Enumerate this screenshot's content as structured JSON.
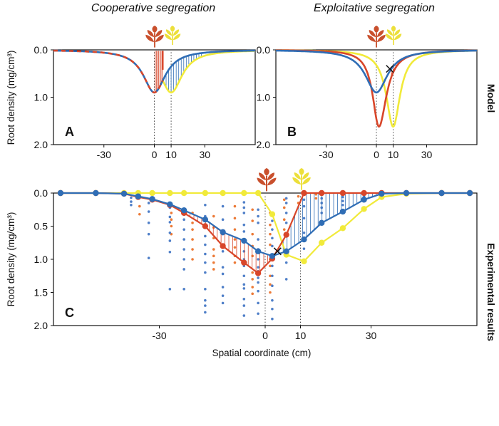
{
  "titles": {
    "cooperative": "Cooperative segregation",
    "exploitative": "Exploitative segregation"
  },
  "side_labels": {
    "model": "Model",
    "experimental": "Experimental results"
  },
  "colors": {
    "red": "#d8462a",
    "blue": "#2f6db5",
    "yellow": "#f1ea3a",
    "orange": "#ec7a37",
    "axis": "#111111",
    "leaf_red": "#c9502d",
    "leaf_yellow": "#ecdf3a"
  },
  "chart_data": [
    {
      "panel": "A",
      "type": "line",
      "title": "Cooperative segregation",
      "ylabel": "Root density (mg/cm³)",
      "xlabel": "",
      "xlim": [
        -60,
        60
      ],
      "ylim": [
        0,
        2
      ],
      "y_inverted": true,
      "xticks": [
        -30,
        0,
        10,
        30
      ],
      "yticks": [
        "0.0",
        "1.0",
        "2.0"
      ],
      "vlines": [
        0,
        10
      ],
      "series": [
        {
          "name": "red plant (model)",
          "color": "red",
          "dashed_with": "blue",
          "peak": 0.9,
          "center": 0,
          "width_left": 8,
          "width_right": 8,
          "truncate_right_at": 5
        },
        {
          "name": "blue total (model)",
          "color": "blue",
          "peak": 0.9,
          "center": 0,
          "width_left": 8,
          "width_right": 8
        },
        {
          "name": "yellow plant (model)",
          "color": "yellow",
          "peak": 0.9,
          "center": 10,
          "width_left": 8,
          "width_right": 8,
          "truncate_left_at": 5
        }
      ]
    },
    {
      "panel": "B",
      "type": "line",
      "title": "Exploitative segregation",
      "ylabel": "",
      "xlabel": "",
      "xlim": [
        -60,
        60
      ],
      "ylim": [
        0,
        2
      ],
      "y_inverted": true,
      "xticks": [
        -30,
        0,
        10,
        30
      ],
      "yticks": [
        "0.0",
        "1.0",
        "2.0"
      ],
      "vlines": [
        0,
        10
      ],
      "cross": {
        "x": 8,
        "y": 0.4
      },
      "series": [
        {
          "name": "blue total (model)",
          "color": "blue",
          "peak": 0.9,
          "center": 0,
          "width_left": 8,
          "width_right": 8
        },
        {
          "name": "red plant (model)",
          "color": "red",
          "peak": 1.62,
          "center": 1.5,
          "width_left": 4.5,
          "width_right": 5.5
        },
        {
          "name": "yellow plant (model)",
          "color": "yellow",
          "peak": 1.62,
          "center": 10,
          "width_left": 5,
          "width_right": 5
        }
      ]
    },
    {
      "panel": "C",
      "type": "line",
      "title": "",
      "ylabel": "Root density (mg/cm³)",
      "xlabel": "Spatial coordinate (cm)",
      "xlim": [
        -60,
        60
      ],
      "ylim": [
        0,
        2
      ],
      "y_inverted": true,
      "xticks": [
        -30,
        0,
        10,
        30
      ],
      "yticks": [
        "0.0",
        "0.5",
        "1.0",
        "1.5",
        "2.0"
      ],
      "vlines": [
        0,
        10
      ],
      "cross": {
        "x": 3.5,
        "y": 0.88
      },
      "series": [
        {
          "name": "blue",
          "color": "blue",
          "x": [
            -58,
            -48,
            -40,
            -36,
            -32,
            -27,
            -23,
            -17,
            -12,
            -6,
            -2,
            2,
            6,
            11,
            16,
            22,
            28,
            33,
            40,
            50,
            58
          ],
          "y": [
            0.0,
            0.0,
            0.01,
            0.05,
            0.09,
            0.17,
            0.26,
            0.4,
            0.59,
            0.72,
            0.88,
            0.95,
            0.88,
            0.7,
            0.45,
            0.28,
            0.1,
            0.01,
            0.0,
            0.0,
            0.0
          ]
        },
        {
          "name": "red",
          "color": "red",
          "x": [
            -58,
            -48,
            -40,
            -36,
            -32,
            -27,
            -23,
            -17,
            -12,
            -6,
            -2,
            2,
            6,
            11,
            16,
            22,
            28,
            33,
            40,
            50,
            58
          ],
          "y": [
            0.0,
            0.0,
            0.01,
            0.06,
            0.1,
            0.18,
            0.3,
            0.5,
            0.8,
            1.05,
            1.21,
            0.99,
            0.63,
            0.0,
            0.0,
            0.0,
            0.0,
            0.0,
            0.0,
            0.0,
            0.0
          ]
        },
        {
          "name": "yellow",
          "color": "yellow",
          "x": [
            -58,
            -48,
            -40,
            -36,
            -32,
            -27,
            -23,
            -17,
            -12,
            -6,
            -2,
            2,
            6,
            11,
            16,
            22,
            28,
            33,
            40,
            50,
            58
          ],
          "y": [
            0.0,
            0.0,
            0.0,
            0.0,
            0.0,
            0.0,
            0.0,
            0.0,
            0.0,
            0.0,
            0.0,
            0.32,
            0.93,
            1.03,
            0.75,
            0.53,
            0.24,
            0.06,
            0.01,
            0.0,
            0.0
          ]
        }
      ],
      "scatter": {
        "blue_columns": [
          {
            "x": -38,
            "y": [
              0.07,
              0.13,
              0.18
            ]
          },
          {
            "x": -33,
            "y": [
              0.15,
              0.28,
              0.45,
              0.62,
              0.98
            ]
          },
          {
            "x": -27,
            "y": [
              0.22,
              0.36,
              0.44,
              0.6,
              0.72,
              0.89,
              1.45
            ]
          },
          {
            "x": -23,
            "y": [
              0.25,
              0.4,
              0.55,
              0.7,
              0.85,
              1.0,
              1.15,
              1.45
            ]
          },
          {
            "x": -17,
            "y": [
              0.18,
              0.35,
              0.5,
              0.65,
              0.78,
              0.92,
              1.05,
              1.2,
              1.45,
              1.62,
              1.7,
              1.8
            ]
          },
          {
            "x": -12,
            "y": [
              0.2,
              0.4,
              0.62,
              0.88,
              1.12,
              1.22,
              1.42,
              1.55,
              1.66
            ]
          },
          {
            "x": -6,
            "y": [
              0.14,
              0.22,
              0.3,
              0.48,
              0.58,
              0.7,
              0.88,
              1.0,
              1.1,
              1.25,
              1.38,
              1.44,
              1.6,
              1.7,
              1.85
            ]
          },
          {
            "x": -2,
            "y": [
              0.25,
              0.35,
              0.45,
              0.7,
              0.85,
              1.0,
              1.12,
              1.18,
              1.28,
              1.35,
              1.48,
              1.66,
              1.82
            ]
          },
          {
            "x": 2,
            "y": [
              0.3,
              0.42,
              0.55,
              0.68,
              0.8,
              0.95,
              1.1,
              1.25,
              1.4,
              1.62,
              1.75,
              1.9
            ]
          },
          {
            "x": 6,
            "y": [
              0.08,
              0.15,
              0.3,
              0.45,
              0.9,
              1.05,
              1.3
            ]
          },
          {
            "x": 11,
            "y": [
              0.1,
              0.2,
              0.38,
              0.6,
              0.84,
              1.02
            ]
          },
          {
            "x": 16,
            "y": [
              0.08,
              0.15,
              0.22,
              0.3
            ]
          },
          {
            "x": 22,
            "y": [
              0.06,
              0.12,
              0.18
            ]
          },
          {
            "x": 28,
            "y": [
              0.05,
              0.1
            ]
          }
        ],
        "orange_columns": [
          {
            "x": -36,
            "y": [
              0.2,
              0.32
            ]
          },
          {
            "x": -27,
            "y": [
              0.18,
              0.3,
              0.4,
              0.5,
              0.62
            ]
          },
          {
            "x": -21,
            "y": [
              0.3,
              0.45,
              0.55,
              0.7,
              0.85,
              1.0
            ]
          },
          {
            "x": -15,
            "y": [
              0.35,
              0.52,
              0.68,
              0.85,
              0.95,
              1.05,
              1.15
            ]
          },
          {
            "x": -9,
            "y": [
              0.2,
              0.38,
              0.55,
              0.7,
              0.82,
              0.95,
              1.05
            ]
          },
          {
            "x": -4,
            "y": [
              0.25,
              0.42,
              0.62,
              0.8,
              0.95,
              1.2,
              1.3,
              1.42,
              1.52
            ]
          },
          {
            "x": 1,
            "y": [
              0.3,
              0.48,
              0.62,
              0.78,
              1.0,
              1.1,
              1.25,
              1.38,
              1.5
            ]
          },
          {
            "x": 5,
            "y": [
              0.1,
              0.22,
              0.4,
              0.55
            ]
          },
          {
            "x": 9,
            "y": [
              0.05,
              0.15
            ]
          },
          {
            "x": 14,
            "y": [
              0.02,
              0.08
            ]
          }
        ]
      }
    }
  ]
}
